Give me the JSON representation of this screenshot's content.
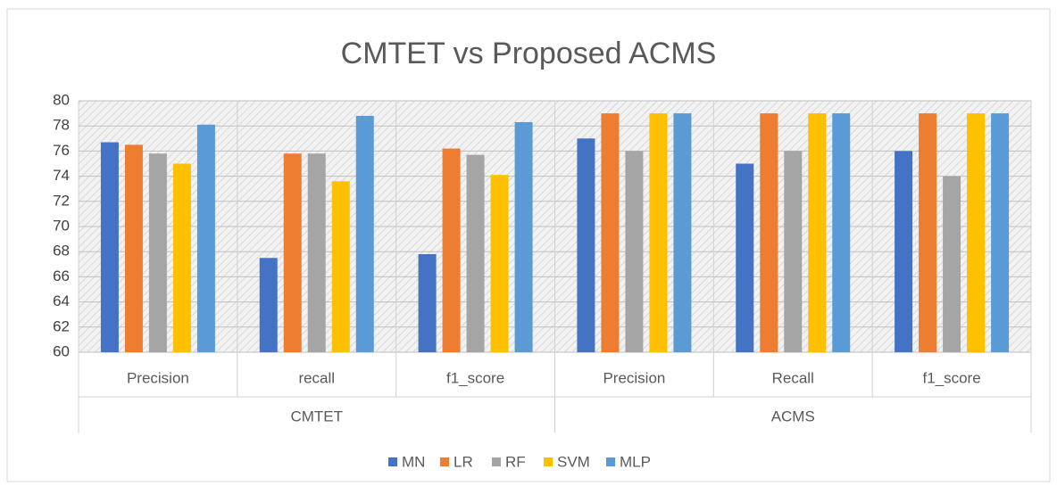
{
  "chart_data": {
    "type": "bar",
    "title": "CMTET vs Proposed ACMS",
    "categories": [
      "Precision",
      "recall",
      "f1_score",
      "Precision",
      "Recall",
      "f1_score"
    ],
    "category_groups": [
      "CMTET",
      "CMTET",
      "CMTET",
      "ACMS",
      "ACMS",
      "ACMS"
    ],
    "series": [
      {
        "name": "MN",
        "color": "#4472c4",
        "values": [
          76.7,
          67.5,
          67.8,
          77,
          75,
          76
        ]
      },
      {
        "name": "LR",
        "color": "#ed7d31",
        "values": [
          76.5,
          75.8,
          76.2,
          79,
          79,
          79
        ]
      },
      {
        "name": "RF",
        "color": "#a5a5a5",
        "values": [
          75.8,
          75.8,
          75.7,
          76,
          76,
          74
        ]
      },
      {
        "name": "SVM",
        "color": "#ffc000",
        "values": [
          75,
          73.6,
          74.1,
          79,
          79,
          79
        ]
      },
      {
        "name": "MLP",
        "color": "#5b9bd5",
        "values": [
          78.1,
          78.8,
          78.3,
          79,
          79,
          79
        ]
      }
    ],
    "ylim": [
      60,
      80
    ],
    "yticks": [
      60,
      62,
      64,
      66,
      68,
      70,
      72,
      74,
      76,
      78,
      80
    ],
    "grid": true,
    "legend": "bottom"
  }
}
